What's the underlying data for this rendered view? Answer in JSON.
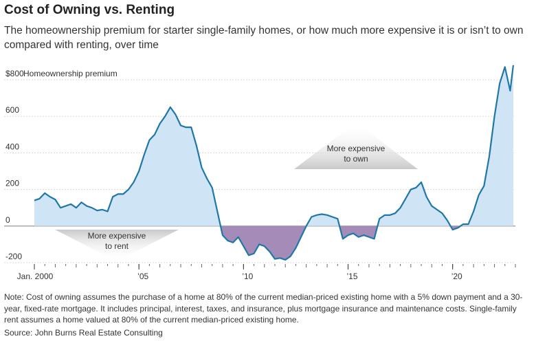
{
  "header": {
    "title": "Cost of Owning vs. Renting",
    "subtitle": "The homeownership premium for starter single-family homes, or how much more expensive it is or isn’t to own compared with renting, over time"
  },
  "chart_data": {
    "type": "area",
    "ylabel": "Homeownership premium",
    "ylim": [
      -200,
      800
    ],
    "yticks": [
      -200,
      0,
      200,
      400,
      600,
      800
    ],
    "ytick_labels": [
      "-200",
      "0",
      "200",
      "400",
      "600",
      "$800"
    ],
    "xlim": [
      2000,
      2023
    ],
    "xticks": [
      2000,
      2005,
      2010,
      2015,
      2020
    ],
    "xtick_labels": [
      "Jan. 2000",
      "’05",
      "’10",
      "’15",
      "’20"
    ],
    "grid": true,
    "annotations": [
      {
        "text": "More expensive to own",
        "lines": [
          "More expensive",
          "to own"
        ],
        "direction": "up"
      },
      {
        "text": "More expensive to rent",
        "lines": [
          "More expensive",
          "to rent"
        ],
        "direction": "down"
      }
    ],
    "colors": {
      "line": "#1f77a8",
      "positive_fill": "#cfe4f5",
      "negative_fill": "#a58bb8",
      "arrow": "#d6d6d6"
    },
    "x": [
      2000.0,
      2000.25,
      2000.5,
      2000.75,
      2001.0,
      2001.25,
      2001.5,
      2001.75,
      2002.0,
      2002.25,
      2002.5,
      2002.75,
      2003.0,
      2003.25,
      2003.5,
      2003.75,
      2004.0,
      2004.25,
      2004.5,
      2004.75,
      2005.0,
      2005.25,
      2005.5,
      2005.75,
      2006.0,
      2006.25,
      2006.5,
      2006.75,
      2007.0,
      2007.25,
      2007.5,
      2007.75,
      2008.0,
      2008.25,
      2008.5,
      2008.75,
      2009.0,
      2009.25,
      2009.5,
      2009.75,
      2010.0,
      2010.25,
      2010.5,
      2010.75,
      2011.0,
      2011.25,
      2011.5,
      2011.75,
      2012.0,
      2012.25,
      2012.5,
      2012.75,
      2013.0,
      2013.25,
      2013.5,
      2013.75,
      2014.0,
      2014.25,
      2014.5,
      2014.75,
      2015.0,
      2015.25,
      2015.5,
      2015.75,
      2016.0,
      2016.25,
      2016.5,
      2016.75,
      2017.0,
      2017.25,
      2017.5,
      2017.75,
      2018.0,
      2018.25,
      2018.5,
      2018.75,
      2019.0,
      2019.25,
      2019.5,
      2019.75,
      2020.0,
      2020.25,
      2020.5,
      2020.75,
      2021.0,
      2021.25,
      2021.5,
      2021.75,
      2022.0,
      2022.25,
      2022.5,
      2022.75,
      2022.9
    ],
    "values": [
      140,
      150,
      180,
      160,
      145,
      100,
      110,
      120,
      100,
      130,
      110,
      100,
      85,
      90,
      80,
      160,
      175,
      175,
      200,
      240,
      300,
      390,
      470,
      500,
      560,
      600,
      650,
      610,
      550,
      540,
      540,
      440,
      320,
      260,
      210,
      80,
      -50,
      -80,
      -90,
      -60,
      -110,
      -160,
      -150,
      -100,
      -110,
      -140,
      -180,
      -175,
      -185,
      -165,
      -120,
      -60,
      0,
      50,
      60,
      65,
      60,
      50,
      40,
      -70,
      -50,
      -40,
      -60,
      -50,
      -60,
      -70,
      40,
      60,
      60,
      70,
      100,
      150,
      200,
      210,
      240,
      160,
      110,
      90,
      70,
      30,
      -20,
      -10,
      10,
      10,
      80,
      170,
      220,
      380,
      600,
      780,
      870,
      740,
      880
    ]
  },
  "footer": {
    "note": "Note: Cost of owning assumes the purchase of a home at 80% of the current median-priced existing home with a 5% down payment and a 30-year, fixed-rate mortgage. It includes principal, interest, taxes, and insurance, plus mortgage insurance and maintenance costs. Single-family rent assumes a home valued at 80% of the current median-priced existing home.",
    "source": "Source: John Burns Real Estate Consulting"
  }
}
